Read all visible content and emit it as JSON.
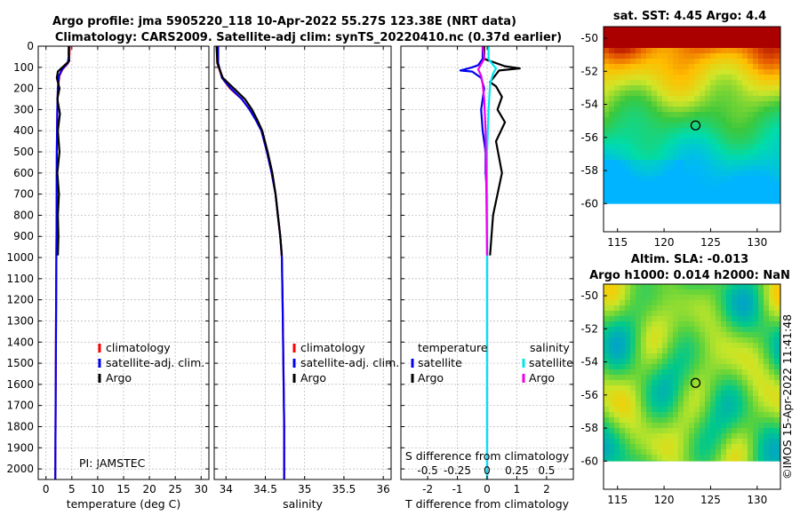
{
  "header": {
    "title_line1": "Argo profile: jma 5905220_118 10-Apr-2022 55.27S 123.38E (NRT data)",
    "title_line2": "Climatology: CARS2009. Satellite-adj clim: synTS_20220410.nc (0.37d earlier)"
  },
  "pi_label": "PI: JAMSTEC",
  "side_stamp": "©IMOS 15-Apr-2022 11:41:48",
  "colors": {
    "climatology": "#ff0000",
    "satellite": "#0000ee",
    "argo": "#000000",
    "sal_satellite": "#00e5ee",
    "sal_argo": "#ee00ee"
  },
  "depth_axis": {
    "ticks": [
      0,
      100,
      200,
      300,
      400,
      500,
      600,
      700,
      800,
      900,
      1000,
      1100,
      1200,
      1300,
      1400,
      1500,
      1600,
      1700,
      1800,
      1900,
      2000
    ],
    "range": [
      0,
      2050
    ]
  },
  "chart_data": [
    {
      "id": "temperature",
      "type": "line",
      "xlabel": "temperature (deg C)",
      "xlim": [
        -1.5,
        31.5
      ],
      "xticks": [
        0,
        5,
        10,
        15,
        20,
        25,
        30
      ],
      "ylim": [
        2050,
        0
      ],
      "legend": [
        "climatology",
        "satellite-adj. clim.",
        "Argo"
      ],
      "series": [
        {
          "name": "climatology",
          "color": "#ff0000",
          "x": [
            4.6,
            4.5,
            4.3,
            3.2,
            2.6,
            2.3,
            2.2,
            2.1,
            2.05,
            2.0,
            1.9,
            1.8
          ],
          "y": [
            0,
            50,
            80,
            110,
            140,
            200,
            300,
            500,
            800,
            1000,
            1500,
            2050
          ]
        },
        {
          "name": "satellite-adj. clim.",
          "color": "#0000ee",
          "x": [
            4.45,
            4.4,
            4.2,
            3.1,
            2.5,
            2.3,
            2.2,
            2.1,
            2.05,
            2.0,
            1.9,
            1.8
          ],
          "y": [
            0,
            50,
            80,
            110,
            140,
            200,
            300,
            500,
            800,
            1000,
            1500,
            2050
          ]
        },
        {
          "name": "Argo",
          "color": "#000000",
          "x": [
            4.4,
            4.4,
            4.5,
            3.6,
            2.3,
            2.1,
            2.6,
            2.2,
            2.7,
            2.3,
            2.6,
            2.2,
            2.5,
            2.3,
            2.4,
            2.3
          ],
          "y": [
            0,
            40,
            70,
            90,
            120,
            150,
            200,
            250,
            320,
            400,
            500,
            600,
            700,
            800,
            900,
            990
          ]
        }
      ]
    },
    {
      "id": "salinity",
      "type": "line",
      "xlabel": "salinity",
      "xlim": [
        33.85,
        36.1
      ],
      "xticks": [
        34,
        34.5,
        35,
        35.5,
        36
      ],
      "ylim": [
        2050,
        0
      ],
      "legend": [
        "climatology",
        "satellite-adj. clim.",
        "Argo"
      ],
      "series": [
        {
          "name": "climatology",
          "color": "#ff0000",
          "x": [
            33.88,
            33.89,
            33.95,
            34.05,
            34.2,
            34.3,
            34.38,
            34.45,
            34.52,
            34.58,
            34.63,
            34.66,
            34.69,
            34.71,
            34.72,
            34.73,
            34.74,
            34.74
          ],
          "y": [
            0,
            80,
            150,
            200,
            250,
            300,
            350,
            400,
            500,
            600,
            700,
            800,
            900,
            1000,
            1200,
            1500,
            1800,
            2050
          ]
        },
        {
          "name": "satellite-adj. clim.",
          "color": "#0000ee",
          "x": [
            33.9,
            33.9,
            33.95,
            34.06,
            34.2,
            34.3,
            34.38,
            34.45,
            34.52,
            34.58,
            34.63,
            34.66,
            34.69,
            34.71,
            34.72,
            34.73,
            34.74,
            34.74
          ],
          "y": [
            0,
            80,
            150,
            200,
            250,
            300,
            350,
            400,
            500,
            600,
            700,
            800,
            900,
            1000,
            1200,
            1500,
            1800,
            2050
          ]
        },
        {
          "name": "Argo",
          "color": "#000000",
          "x": [
            33.88,
            33.89,
            33.96,
            34.1,
            34.24,
            34.33,
            34.4,
            34.46,
            34.53,
            34.59,
            34.63,
            34.66,
            34.69,
            34.71
          ],
          "y": [
            0,
            80,
            150,
            200,
            250,
            300,
            350,
            400,
            500,
            600,
            700,
            800,
            900,
            990
          ]
        }
      ]
    },
    {
      "id": "differences",
      "type": "line",
      "xlabel": "T difference from climatology",
      "xlabel_top": "S difference from climatology",
      "xlim": [
        -2.9,
        2.9
      ],
      "xticks": [
        -2,
        -1,
        0,
        1,
        2
      ],
      "xticks_top_values": [
        -0.5,
        -0.25,
        0,
        0.25,
        0.5
      ],
      "xticks_top_labels": [
        "-0.5",
        "-0.25",
        "0",
        "0.25",
        "0.5"
      ],
      "ylim": [
        2050,
        0
      ],
      "legend_groups": [
        {
          "title": "temperature",
          "items": [
            "satellite",
            "Argo"
          ]
        },
        {
          "title": "salinity",
          "items": [
            "satellite",
            "Argo"
          ]
        }
      ],
      "series": [
        {
          "name": "temperature satellite",
          "color": "#0000ee",
          "x": [
            -0.15,
            -0.15,
            -0.3,
            -0.5,
            -0.9,
            -0.5,
            -0.2,
            -0.1,
            -0.2,
            -0.15,
            -0.05,
            -0.05,
            0.0,
            0.0,
            0.0,
            0.0,
            0.0
          ],
          "y": [
            0,
            60,
            90,
            100,
            115,
            120,
            150,
            200,
            300,
            400,
            500,
            600,
            700,
            800,
            1000,
            1500,
            2050
          ]
        },
        {
          "name": "temperature Argo",
          "color": "#000000",
          "x": [
            -0.1,
            -0.1,
            0.6,
            1.1,
            0.4,
            0.1,
            0.3,
            0.5,
            0.35,
            0.6,
            0.3,
            0.5,
            0.2,
            0.1
          ],
          "y": [
            0,
            60,
            95,
            105,
            115,
            170,
            190,
            240,
            300,
            360,
            450,
            600,
            800,
            990
          ]
        },
        {
          "name": "salinity satellite",
          "color": "#00e5ee",
          "x": [
            0.05,
            0.05,
            0.15,
            0.3,
            0.2,
            0.1,
            0.05,
            0.0,
            0.0,
            0.0,
            0.0
          ],
          "y": [
            0,
            60,
            80,
            105,
            130,
            180,
            300,
            500,
            1000,
            1500,
            2050
          ]
        },
        {
          "name": "salinity Argo",
          "color": "#ee00ee",
          "x": [
            -0.15,
            -0.1,
            -0.3,
            -0.2,
            -0.15,
            -0.1,
            -0.05,
            0.0
          ],
          "y": [
            0,
            60,
            110,
            140,
            180,
            250,
            400,
            990
          ]
        }
      ]
    },
    {
      "id": "sst_map",
      "type": "heatmap",
      "title": "sat. SST: 4.45 Argo: 4.4",
      "lon_range": [
        113.5,
        132.5
      ],
      "lat_range": [
        -61.7,
        -49.3
      ],
      "xticks": [
        115,
        120,
        125,
        130
      ],
      "yticks": [
        -50,
        -52,
        -54,
        -56,
        -58,
        -60
      ],
      "yticklabels": [
        "-50",
        "-52",
        "-54",
        "-56",
        "-58",
        "-60"
      ],
      "profile_marker": {
        "lon": 123.38,
        "lat": -55.27
      },
      "no_data_below_lat": -60.0
    },
    {
      "id": "sla_map",
      "type": "heatmap",
      "title": "Altim. SLA: -0.013",
      "subtitle": "Argo h1000: 0.014 h2000: NaN",
      "lon_range": [
        113.5,
        132.5
      ],
      "lat_range": [
        -61.7,
        -49.3
      ],
      "xticks": [
        115,
        120,
        125,
        130
      ],
      "yticks": [
        -50,
        -52,
        -54,
        -56,
        -58,
        -60
      ],
      "yticklabels": [
        "-50",
        "-52",
        "-54",
        "-56",
        "-58",
        "-60"
      ],
      "profile_marker": {
        "lon": 123.38,
        "lat": -55.27
      },
      "no_data_below_lat": -60.0
    }
  ]
}
